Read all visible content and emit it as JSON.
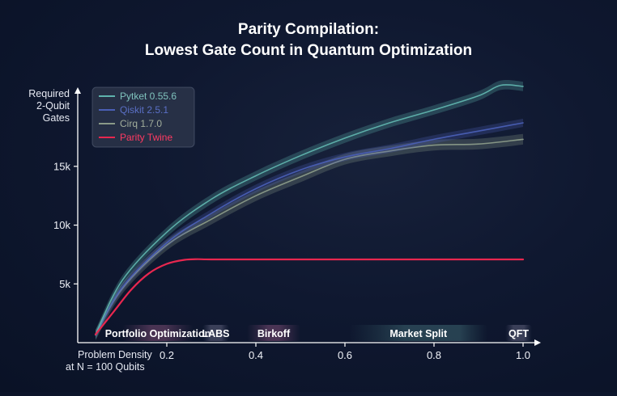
{
  "chart_data": {
    "type": "line",
    "title_lines": [
      "Parity Compilation:",
      "Lowest Gate Count in Quantum Optimization"
    ],
    "ylabel_lines": [
      "Required",
      "2-Qubit",
      "Gates"
    ],
    "xlabel_lines": [
      "Problem Density",
      "at N = 100 Qubits"
    ],
    "xlim": [
      0.0,
      1.0
    ],
    "ylim": [
      0,
      22000
    ],
    "xticks": [
      0.2,
      0.4,
      0.6,
      0.8,
      1.0
    ],
    "xtick_labels": [
      "0.2",
      "0.4",
      "0.6",
      "0.8",
      "1.0"
    ],
    "yticks": [
      5000,
      10000,
      15000
    ],
    "ytick_labels": [
      "5k",
      "10k",
      "15k"
    ],
    "grid": false,
    "legend_position": "top-left",
    "series": [
      {
        "name": "Pytket 0.55.6",
        "color": "#5fb3ad",
        "band": 400,
        "x": [
          0.04,
          0.1,
          0.2,
          0.3,
          0.4,
          0.5,
          0.6,
          0.7,
          0.8,
          0.9,
          0.95,
          1.0
        ],
        "y": [
          700,
          5300,
          9400,
          12200,
          14200,
          15900,
          17400,
          18700,
          19800,
          21000,
          21900,
          21800
        ]
      },
      {
        "name": "Qiskit 2.5.1",
        "color": "#4a5fb5",
        "band": 350,
        "x": [
          0.04,
          0.1,
          0.2,
          0.3,
          0.4,
          0.5,
          0.6,
          0.7,
          0.8,
          0.9,
          1.0
        ],
        "y": [
          650,
          4700,
          8500,
          11000,
          13100,
          14700,
          15800,
          16500,
          17300,
          18000,
          18700
        ]
      },
      {
        "name": "Cirq 1.7.0",
        "color": "#8a9a88",
        "band": 450,
        "x": [
          0.04,
          0.1,
          0.2,
          0.3,
          0.4,
          0.5,
          0.6,
          0.7,
          0.8,
          0.9,
          1.0
        ],
        "y": [
          650,
          4600,
          8300,
          10500,
          12500,
          14100,
          15600,
          16300,
          16800,
          16900,
          17300
        ]
      },
      {
        "name": "Parity Twine",
        "color": "#e8274f",
        "band": 0,
        "x": [
          0.04,
          0.08,
          0.12,
          0.16,
          0.2,
          0.24,
          0.27,
          0.3,
          0.4,
          0.6,
          0.8,
          1.0
        ],
        "y": [
          700,
          2600,
          4500,
          5900,
          6700,
          7050,
          7100,
          7080,
          7080,
          7080,
          7080,
          7080
        ]
      }
    ],
    "regions": [
      {
        "label": "Portfolio Optimization",
        "from": 0.1,
        "to": 0.26
      },
      {
        "label": "LABS",
        "from": 0.28,
        "to": 0.34
      },
      {
        "label": "Birkoff",
        "from": 0.38,
        "to": 0.5
      },
      {
        "label": "Market Split",
        "from": 0.61,
        "to": 0.92
      },
      {
        "label": "QFT",
        "from": 0.96,
        "to": 1.02
      }
    ]
  }
}
